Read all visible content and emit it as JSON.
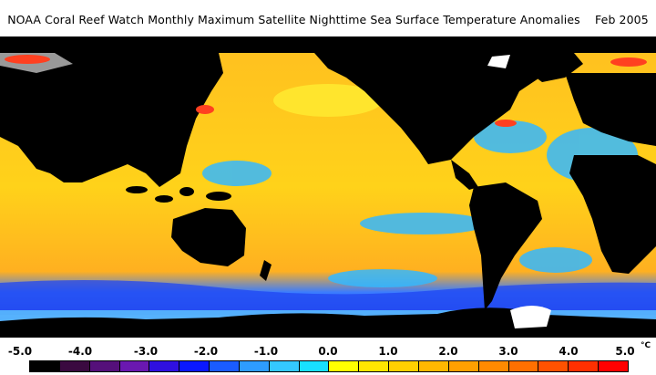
{
  "title": "NOAA Coral Reef Watch Monthly Maximum Satellite Nighttime Sea Surface Temperature Anomalies    Feb 2005",
  "colorbar": {
    "labels": [
      "-5.0",
      "-4.0",
      "-3.0",
      "-2.0",
      "-1.0",
      "0.0",
      "1.0",
      "2.0",
      "3.0",
      "4.0",
      "5.0"
    ],
    "unit": "°C",
    "colors": [
      "#000000",
      "#3a0a40",
      "#55107a",
      "#6a18b0",
      "#2f10e0",
      "#0a18ff",
      "#1a5cff",
      "#2e9cff",
      "#34c8ff",
      "#18e0ff",
      "#ffff00",
      "#ffe600",
      "#ffd000",
      "#ffb800",
      "#ffa000",
      "#ff8a00",
      "#ff7000",
      "#ff5200",
      "#ff3000",
      "#ff0000"
    ]
  },
  "map_colors": {
    "land": "#000000",
    "ice": "#ffffff",
    "warm_base": "#ffd21a",
    "cool": "#34b8ff"
  }
}
